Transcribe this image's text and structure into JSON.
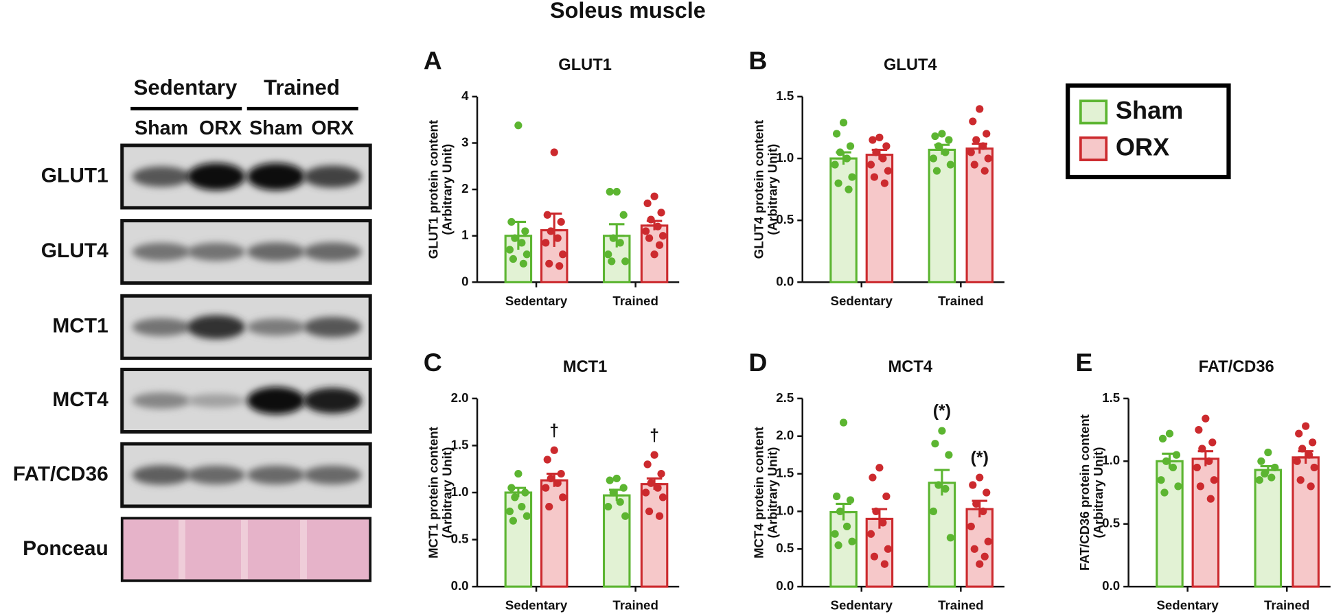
{
  "title": "Soleus muscle",
  "blot": {
    "groups": [
      "Sedentary",
      "Trained"
    ],
    "lanes": [
      "Sham",
      "ORX",
      "Sham",
      "ORX"
    ],
    "rows": [
      "GLUT1",
      "GLUT4",
      "MCT1",
      "MCT4",
      "FAT/CD36",
      "Ponceau"
    ]
  },
  "chart_data": [
    {
      "type": "bar",
      "panel": "A",
      "title": "GLUT1",
      "ylabel": [
        "GLUT1 protein content",
        "(Arbitrary Unit)"
      ],
      "categories": [
        "Sedentary",
        "Trained"
      ],
      "ylim": [
        0,
        4
      ],
      "yticks": [
        0,
        1,
        2,
        3,
        4
      ],
      "series": [
        {
          "name": "Sham",
          "color": "#5cb531",
          "fill": "#e2f2d4",
          "values": [
            1.0,
            1.0
          ],
          "errors": [
            0.3,
            0.25
          ],
          "points": [
            [
              3.38,
              1.3,
              1.1,
              0.95,
              0.85,
              0.7,
              0.6,
              0.5,
              0.4
            ],
            [
              1.95,
              1.95,
              1.45,
              0.95,
              0.85,
              0.6,
              0.45,
              0.45
            ]
          ]
        },
        {
          "name": "ORX",
          "color": "#cc2a2e",
          "fill": "#f6c8c9",
          "values": [
            1.12,
            1.22
          ],
          "errors": [
            0.36,
            0.1
          ],
          "points": [
            [
              2.8,
              1.45,
              1.3,
              1.1,
              0.95,
              0.85,
              0.6,
              0.4,
              0.35
            ],
            [
              1.85,
              1.7,
              1.5,
              1.35,
              1.2,
              1.1,
              1.0,
              0.95,
              0.8,
              0.6
            ]
          ]
        }
      ]
    },
    {
      "type": "bar",
      "panel": "B",
      "title": "GLUT4",
      "ylabel": [
        "GLUT4 protein content",
        "(Arbitrary Unit)"
      ],
      "categories": [
        "Sedentary",
        "Trained"
      ],
      "ylim": [
        0,
        1.5
      ],
      "yticks": [
        {
          "value": 0,
          "label": "0.0"
        },
        {
          "value": 0.5,
          "label": "0.5"
        },
        {
          "value": 1,
          "label": "1.0"
        },
        {
          "value": 1.5,
          "label": "1.5"
        }
      ],
      "series": [
        {
          "name": "Sham",
          "color": "#5cb531",
          "fill": "#e2f2d4",
          "values": [
            1.0,
            1.07
          ],
          "errors": [
            0.05,
            0.04
          ],
          "points": [
            [
              1.29,
              1.2,
              1.1,
              1.05,
              1.0,
              0.95,
              0.85,
              0.8,
              0.75
            ],
            [
              1.2,
              1.18,
              1.15,
              1.1,
              1.05,
              1.0,
              0.95,
              0.9
            ]
          ]
        },
        {
          "name": "ORX",
          "color": "#cc2a2e",
          "fill": "#f6c8c9",
          "values": [
            1.03,
            1.08
          ],
          "errors": [
            0.04,
            0.04
          ],
          "points": [
            [
              1.17,
              1.15,
              1.1,
              1.05,
              1.0,
              0.95,
              0.9,
              0.85,
              0.8
            ],
            [
              1.4,
              1.3,
              1.2,
              1.15,
              1.1,
              1.05,
              1.0,
              0.95,
              0.9
            ]
          ]
        }
      ]
    },
    {
      "type": "bar",
      "panel": "C",
      "title": "MCT1",
      "ylabel": [
        "MCT1 protein content",
        "(Arbitrary Unit)"
      ],
      "categories": [
        "Sedentary",
        "Trained"
      ],
      "ylim": [
        0,
        2
      ],
      "yticks": [
        {
          "value": 0,
          "label": "0.0"
        },
        {
          "value": 0.5,
          "label": "0.5"
        },
        {
          "value": 1,
          "label": "1.0"
        },
        {
          "value": 1.5,
          "label": "1.5"
        },
        {
          "value": 2,
          "label": "2.0"
        }
      ],
      "series": [
        {
          "name": "Sham",
          "color": "#5cb531",
          "fill": "#e2f2d4",
          "values": [
            1.0,
            0.97
          ],
          "errors": [
            0.05,
            0.06
          ],
          "points": [
            [
              1.2,
              1.05,
              1.0,
              0.95,
              0.85,
              0.8,
              0.75,
              0.7
            ],
            [
              1.15,
              1.13,
              1.05,
              1.0,
              0.9,
              0.85,
              0.75
            ]
          ]
        },
        {
          "name": "ORX",
          "color": "#cc2a2e",
          "fill": "#f6c8c9",
          "values": [
            1.13,
            1.09
          ],
          "errors": [
            0.07,
            0.06
          ],
          "points": [
            [
              1.45,
              1.35,
              1.2,
              1.15,
              1.1,
              1.05,
              0.95,
              0.85
            ],
            [
              1.4,
              1.3,
              1.2,
              1.1,
              1.05,
              1.0,
              0.95,
              0.8,
              0.75
            ]
          ],
          "annotations": [
            "†",
            "†"
          ]
        }
      ]
    },
    {
      "type": "bar",
      "panel": "D",
      "title": "MCT4",
      "ylabel": [
        "MCT4 protein content",
        "(Arbitrary Unit)"
      ],
      "categories": [
        "Sedentary",
        "Trained"
      ],
      "ylim": [
        0,
        2.5
      ],
      "yticks": [
        {
          "value": 0,
          "label": "0.0"
        },
        {
          "value": 0.5,
          "label": "0.5"
        },
        {
          "value": 1,
          "label": "1.0"
        },
        {
          "value": 1.5,
          "label": "1.5"
        },
        {
          "value": 2,
          "label": "2.0"
        },
        {
          "value": 2.5,
          "label": "2.5"
        }
      ],
      "series": [
        {
          "name": "Sham",
          "color": "#5cb531",
          "fill": "#e2f2d4",
          "values": [
            0.99,
            1.38
          ],
          "errors": [
            0.11,
            0.17
          ],
          "points": [
            [
              2.18,
              1.2,
              1.15,
              1.0,
              0.8,
              0.7,
              0.6,
              0.55
            ],
            [
              2.07,
              1.9,
              1.75,
              1.35,
              1.3,
              1.0,
              0.65
            ]
          ],
          "annotations": [
            null,
            "(*)"
          ]
        },
        {
          "name": "ORX",
          "color": "#cc2a2e",
          "fill": "#f6c8c9",
          "values": [
            0.9,
            1.03
          ],
          "errors": [
            0.13,
            0.11
          ],
          "points": [
            [
              1.58,
              1.45,
              1.2,
              1.0,
              0.85,
              0.7,
              0.5,
              0.4,
              0.3
            ],
            [
              1.45,
              1.35,
              1.25,
              1.1,
              1.0,
              0.8,
              0.6,
              0.5,
              0.4,
              0.3
            ]
          ],
          "annotations": [
            null,
            "(*)"
          ]
        }
      ]
    },
    {
      "type": "bar",
      "panel": "E",
      "title": "FAT/CD36",
      "ylabel": [
        "FAT/CD36 protein content",
        "(Arbitrary Unit)"
      ],
      "categories": [
        "Sedentary",
        "Trained"
      ],
      "ylim": [
        0,
        1.5
      ],
      "yticks": [
        {
          "value": 0,
          "label": "0.0"
        },
        {
          "value": 0.5,
          "label": "0.5"
        },
        {
          "value": 1,
          "label": "1.0"
        },
        {
          "value": 1.5,
          "label": "1.5"
        }
      ],
      "series": [
        {
          "name": "Sham",
          "color": "#5cb531",
          "fill": "#e2f2d4",
          "values": [
            1.0,
            0.93
          ],
          "errors": [
            0.06,
            0.03
          ],
          "points": [
            [
              1.22,
              1.18,
              1.05,
              1.0,
              0.95,
              0.85,
              0.8,
              0.75
            ],
            [
              1.07,
              1.0,
              0.95,
              0.9,
              0.87,
              0.85
            ]
          ]
        },
        {
          "name": "ORX",
          "color": "#cc2a2e",
          "fill": "#f6c8c9",
          "values": [
            1.02,
            1.03
          ],
          "errors": [
            0.06,
            0.05
          ],
          "points": [
            [
              1.34,
              1.25,
              1.15,
              1.1,
              1.0,
              0.95,
              0.85,
              0.8,
              0.7
            ],
            [
              1.28,
              1.22,
              1.15,
              1.1,
              1.05,
              1.0,
              0.95,
              0.85,
              0.8
            ]
          ]
        }
      ]
    }
  ]
}
